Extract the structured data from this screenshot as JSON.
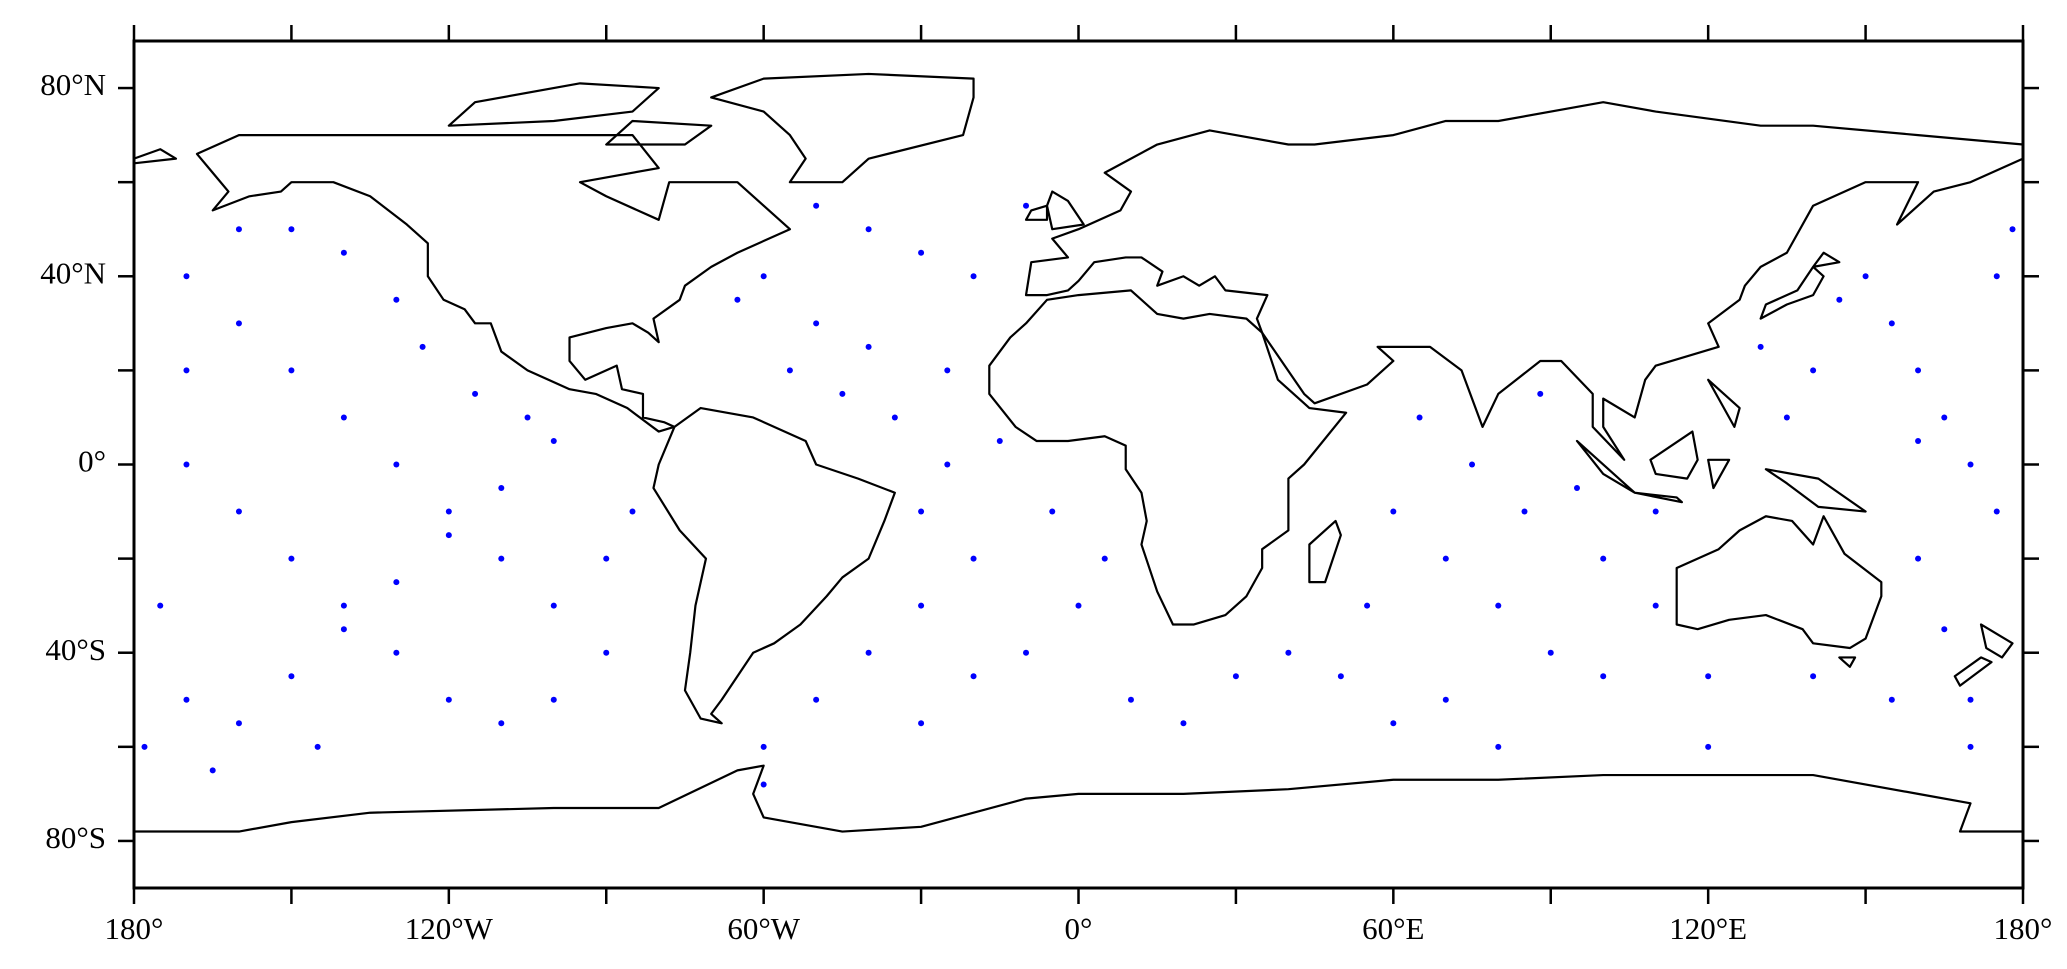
{
  "chart_data": {
    "type": "scatter",
    "color": "#0000ff",
    "xlim": [
      -180,
      180
    ],
    "ylim": [
      -90,
      90
    ],
    "xticks": [
      {
        "value": -180,
        "label": "180°"
      },
      {
        "value": -120,
        "label": "120°W"
      },
      {
        "value": -60,
        "label": "60°W"
      },
      {
        "value": 0,
        "label": "0°"
      },
      {
        "value": 60,
        "label": "60°E"
      },
      {
        "value": 120,
        "label": "120°E"
      },
      {
        "value": 180,
        "label": "180°"
      }
    ],
    "yticks": [
      {
        "value": -80,
        "label": "80°S"
      },
      {
        "value": -40,
        "label": "40°S"
      },
      {
        "value": 0,
        "label": "0°"
      },
      {
        "value": 40,
        "label": "40°N"
      },
      {
        "value": 80,
        "label": "80°N"
      }
    ],
    "x": [
      -170,
      -160,
      -150,
      -140,
      -130,
      -120,
      -110,
      -100,
      -90,
      -170,
      -160,
      -150,
      -140,
      -130,
      -120,
      -110,
      -100,
      -170,
      -160,
      -150,
      -140,
      -130,
      -120,
      -110,
      -100,
      -90,
      -85,
      -170,
      -160,
      -150,
      -140,
      -130,
      -125,
      -115,
      -105,
      -175,
      -178,
      -165,
      -145,
      145,
      150,
      155,
      160,
      165,
      170,
      175,
      160,
      165,
      170,
      155,
      140,
      135,
      130,
      175,
      178,
      170,
      160,
      -50,
      -40,
      -30,
      -20,
      -60,
      -65,
      -50,
      -40,
      -25,
      -55,
      -35,
      -25,
      -30,
      -20,
      -30,
      -40,
      -50,
      -20,
      -10,
      0,
      5,
      -5,
      -15,
      -45,
      -10,
      -60,
      -30,
      10,
      -60,
      60,
      70,
      80,
      90,
      100,
      85,
      65,
      88,
      75,
      95,
      55,
      50,
      70,
      100,
      110,
      120,
      140,
      40,
      30,
      60,
      20,
      80,
      110,
      120
    ],
    "values": [
      40,
      30,
      20,
      10,
      0,
      -10,
      -20,
      -30,
      -40,
      -50,
      -55,
      -45,
      -35,
      -25,
      -15,
      -5,
      5,
      0,
      -10,
      -20,
      -30,
      -40,
      -50,
      -55,
      -50,
      -20,
      -10,
      20,
      50,
      50,
      45,
      35,
      25,
      15,
      10,
      -30,
      -60,
      -65,
      -60,
      35,
      40,
      30,
      20,
      10,
      0,
      -10,
      -20,
      -35,
      -50,
      -50,
      20,
      10,
      25,
      40,
      50,
      -60,
      5,
      55,
      50,
      45,
      40,
      40,
      35,
      30,
      25,
      20,
      20,
      10,
      0,
      -10,
      -20,
      -30,
      -40,
      -50,
      -45,
      -40,
      -30,
      -20,
      -10,
      5,
      15,
      55,
      -60,
      -55,
      -50,
      -68,
      -10,
      -20,
      -30,
      -40,
      -20,
      -10,
      10,
      15,
      0,
      -5,
      -30,
      -45,
      -50,
      -45,
      -30,
      -45,
      -45,
      -40,
      -45,
      -55,
      -55,
      -60,
      -10,
      -60
    ]
  }
}
